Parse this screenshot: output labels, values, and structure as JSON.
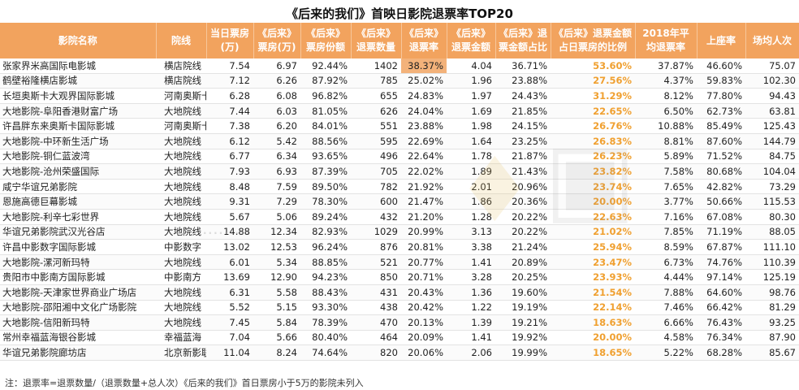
{
  "title": "《后来的我们》首映日影院退票率TOP20",
  "headers": {
    "c1": "影院名称",
    "c2": "院线",
    "c3a": "当日票房",
    "c3b": "(万)",
    "c4a": "《后来》",
    "c4b": "票房(万)",
    "c5a": "《后来》",
    "c5b": "票房份额",
    "c6a": "《后来》",
    "c6b": "退票数量",
    "c7a": "《后来》",
    "c7b": "退票率",
    "c8a": "《后来》",
    "c8b": "退票金额",
    "c9a": "《后来》退",
    "c9b": "票金额占比",
    "c10a": "《后来》退票金额",
    "c10b": "占日票房的比例",
    "c11a": "2018年平",
    "c11b": "均退票率",
    "c12": "上座率",
    "c13": "场均人次"
  },
  "rows": [
    {
      "name": "张家界米高国际电影城",
      "chain": "横店院线",
      "box": "7.54",
      "hl_box": "6.97",
      "share": "92.44%",
      "refunds": "1402",
      "rate": "38.37%",
      "amount": "4.04",
      "amt_share": "36.71%",
      "day_ratio": "53.60%",
      "avg_rate": "37.87%",
      "occupancy": "46.60%",
      "avg_people": "75.07"
    },
    {
      "name": "鹤壁裕隆横店影城",
      "chain": "横店院线",
      "box": "7.12",
      "hl_box": "6.26",
      "share": "87.92%",
      "refunds": "785",
      "rate": "25.02%",
      "amount": "1.96",
      "amt_share": "23.88%",
      "day_ratio": "27.56%",
      "avg_rate": "4.37%",
      "occupancy": "59.83%",
      "avg_people": "102.30"
    },
    {
      "name": "长垣奥斯卡大观界国际影城",
      "chain": "河南奥斯卡",
      "box": "6.28",
      "hl_box": "6.08",
      "share": "96.82%",
      "refunds": "655",
      "rate": "24.83%",
      "amount": "1.97",
      "amt_share": "24.43%",
      "day_ratio": "31.29%",
      "avg_rate": "8.12%",
      "occupancy": "77.80%",
      "avg_people": "94.43"
    },
    {
      "name": "大地影院-阜阳香港财富广场",
      "chain": "大地院线",
      "box": "7.44",
      "hl_box": "6.03",
      "share": "81.05%",
      "refunds": "626",
      "rate": "24.04%",
      "amount": "1.69",
      "amt_share": "21.85%",
      "day_ratio": "22.65%",
      "avg_rate": "6.50%",
      "occupancy": "62.73%",
      "avg_people": "63.81"
    },
    {
      "name": "许昌胖东来奥斯卡国际影城",
      "chain": "河南奥斯卡",
      "box": "7.38",
      "hl_box": "6.20",
      "share": "84.01%",
      "refunds": "551",
      "rate": "23.88%",
      "amount": "1.98",
      "amt_share": "24.15%",
      "day_ratio": "26.76%",
      "avg_rate": "10.88%",
      "occupancy": "85.49%",
      "avg_people": "125.43"
    },
    {
      "name": "大地影院-中环新生活广场",
      "chain": "大地院线",
      "box": "6.12",
      "hl_box": "5.42",
      "share": "88.56%",
      "refunds": "595",
      "rate": "22.69%",
      "amount": "1.64",
      "amt_share": "23.25%",
      "day_ratio": "26.83%",
      "avg_rate": "8.81%",
      "occupancy": "87.60%",
      "avg_people": "144.79"
    },
    {
      "name": "大地影院-铜仁蓝波湾",
      "chain": "大地院线",
      "box": "6.77",
      "hl_box": "6.34",
      "share": "93.65%",
      "refunds": "496",
      "rate": "22.64%",
      "amount": "1.78",
      "amt_share": "21.87%",
      "day_ratio": "26.23%",
      "avg_rate": "5.89%",
      "occupancy": "71.52%",
      "avg_people": "84.75"
    },
    {
      "name": "大地影院-沧州荣盛国际",
      "chain": "大地院线",
      "box": "7.93",
      "hl_box": "6.93",
      "share": "87.39%",
      "refunds": "705",
      "rate": "22.02%",
      "amount": "1.89",
      "amt_share": "21.43%",
      "day_ratio": "23.82%",
      "avg_rate": "7.58%",
      "occupancy": "80.68%",
      "avg_people": "104.04"
    },
    {
      "name": "咸宁华谊兄弟影院",
      "chain": "大地院线",
      "box": "8.48",
      "hl_box": "7.59",
      "share": "89.50%",
      "refunds": "782",
      "rate": "21.92%",
      "amount": "2.01",
      "amt_share": "20.96%",
      "day_ratio": "23.74%",
      "avg_rate": "7.65%",
      "occupancy": "42.82%",
      "avg_people": "73.29"
    },
    {
      "name": "恩施高德巨幕影城",
      "chain": "大地院线",
      "box": "9.31",
      "hl_box": "7.29",
      "share": "78.30%",
      "refunds": "600",
      "rate": "21.47%",
      "amount": "1.86",
      "amt_share": "20.36%",
      "day_ratio": "20.00%",
      "avg_rate": "3.77%",
      "occupancy": "50.66%",
      "avg_people": "115.53"
    },
    {
      "name": "大地影院-利辛七彩世界",
      "chain": "大地院线",
      "box": "5.67",
      "hl_box": "5.06",
      "share": "89.24%",
      "refunds": "432",
      "rate": "21.20%",
      "amount": "1.28",
      "amt_share": "20.22%",
      "day_ratio": "22.63%",
      "avg_rate": "7.16%",
      "occupancy": "67.08%",
      "avg_people": "80.30"
    },
    {
      "name": "华谊兄弟影院武汉光谷店",
      "chain": "大地院线",
      "box": "14.88",
      "hl_box": "12.34",
      "share": "82.93%",
      "refunds": "1029",
      "rate": "20.99%",
      "amount": "3.13",
      "amt_share": "20.22%",
      "day_ratio": "21.02%",
      "avg_rate": "7.85%",
      "occupancy": "71.19%",
      "avg_people": "88.05"
    },
    {
      "name": "许昌中影数字国际影城",
      "chain": "中影数字",
      "box": "13.02",
      "hl_box": "12.53",
      "share": "96.24%",
      "refunds": "876",
      "rate": "20.81%",
      "amount": "3.38",
      "amt_share": "21.24%",
      "day_ratio": "25.94%",
      "avg_rate": "8.59%",
      "occupancy": "67.87%",
      "avg_people": "111.10"
    },
    {
      "name": "大地影院-漯河新玛特",
      "chain": "大地院线",
      "box": "6.01",
      "hl_box": "5.34",
      "share": "88.85%",
      "refunds": "521",
      "rate": "20.77%",
      "amount": "1.41",
      "amt_share": "20.89%",
      "day_ratio": "23.47%",
      "avg_rate": "6.73%",
      "occupancy": "74.76%",
      "avg_people": "110.39"
    },
    {
      "name": "贵阳市中影南方国际影城",
      "chain": "中影南方",
      "box": "13.69",
      "hl_box": "12.90",
      "share": "94.23%",
      "refunds": "850",
      "rate": "20.71%",
      "amount": "3.28",
      "amt_share": "20.25%",
      "day_ratio": "23.93%",
      "avg_rate": "4.44%",
      "occupancy": "97.14%",
      "avg_people": "125.19"
    },
    {
      "name": "大地影院-天津家世界商业广场店",
      "chain": "大地院线",
      "box": "6.31",
      "hl_box": "5.58",
      "share": "88.43%",
      "refunds": "431",
      "rate": "20.43%",
      "amount": "1.36",
      "amt_share": "19.60%",
      "day_ratio": "21.54%",
      "avg_rate": "7.88%",
      "occupancy": "64.60%",
      "avg_people": "98.76"
    },
    {
      "name": "大地影院-邵阳湘中文化广场影院",
      "chain": "大地院线",
      "box": "5.52",
      "hl_box": "5.15",
      "share": "93.30%",
      "refunds": "438",
      "rate": "20.42%",
      "amount": "1.22",
      "amt_share": "19.19%",
      "day_ratio": "22.14%",
      "avg_rate": "7.46%",
      "occupancy": "66.42%",
      "avg_people": "81.29"
    },
    {
      "name": "大地影院-信阳新玛特",
      "chain": "大地院线",
      "box": "7.45",
      "hl_box": "5.84",
      "share": "78.39%",
      "refunds": "470",
      "rate": "20.13%",
      "amount": "1.39",
      "amt_share": "19.21%",
      "day_ratio": "18.63%",
      "avg_rate": "6.66%",
      "occupancy": "76.43%",
      "avg_people": "93.25"
    },
    {
      "name": "常州幸福蓝海银谷影城",
      "chain": "幸福蓝海",
      "box": "7.04",
      "hl_box": "5.66",
      "share": "80.40%",
      "refunds": "464",
      "rate": "20.09%",
      "amount": "1.41",
      "amt_share": "19.92%",
      "day_ratio": "20.00%",
      "avg_rate": "4.58%",
      "occupancy": "76.34%",
      "avg_people": "87.90"
    },
    {
      "name": "华谊兄弟影院廊坊店",
      "chain": "北京新影联",
      "box": "11.04",
      "hl_box": "8.24",
      "share": "74.64%",
      "refunds": "820",
      "rate": "20.06%",
      "amount": "2.06",
      "amt_share": "19.99%",
      "day_ratio": "18.65%",
      "avg_rate": "5.22%",
      "occupancy": "68.28%",
      "avg_people": "85.67"
    }
  ],
  "footnote": "注：退票率=退票数量/（退票数量+总人次）《后来的我们》首日票房小于5万的影院未列入",
  "colors": {
    "header_bg": "#f2a35e",
    "highlight": "#f0a030",
    "top_rate_bg": "#f3b27a"
  }
}
